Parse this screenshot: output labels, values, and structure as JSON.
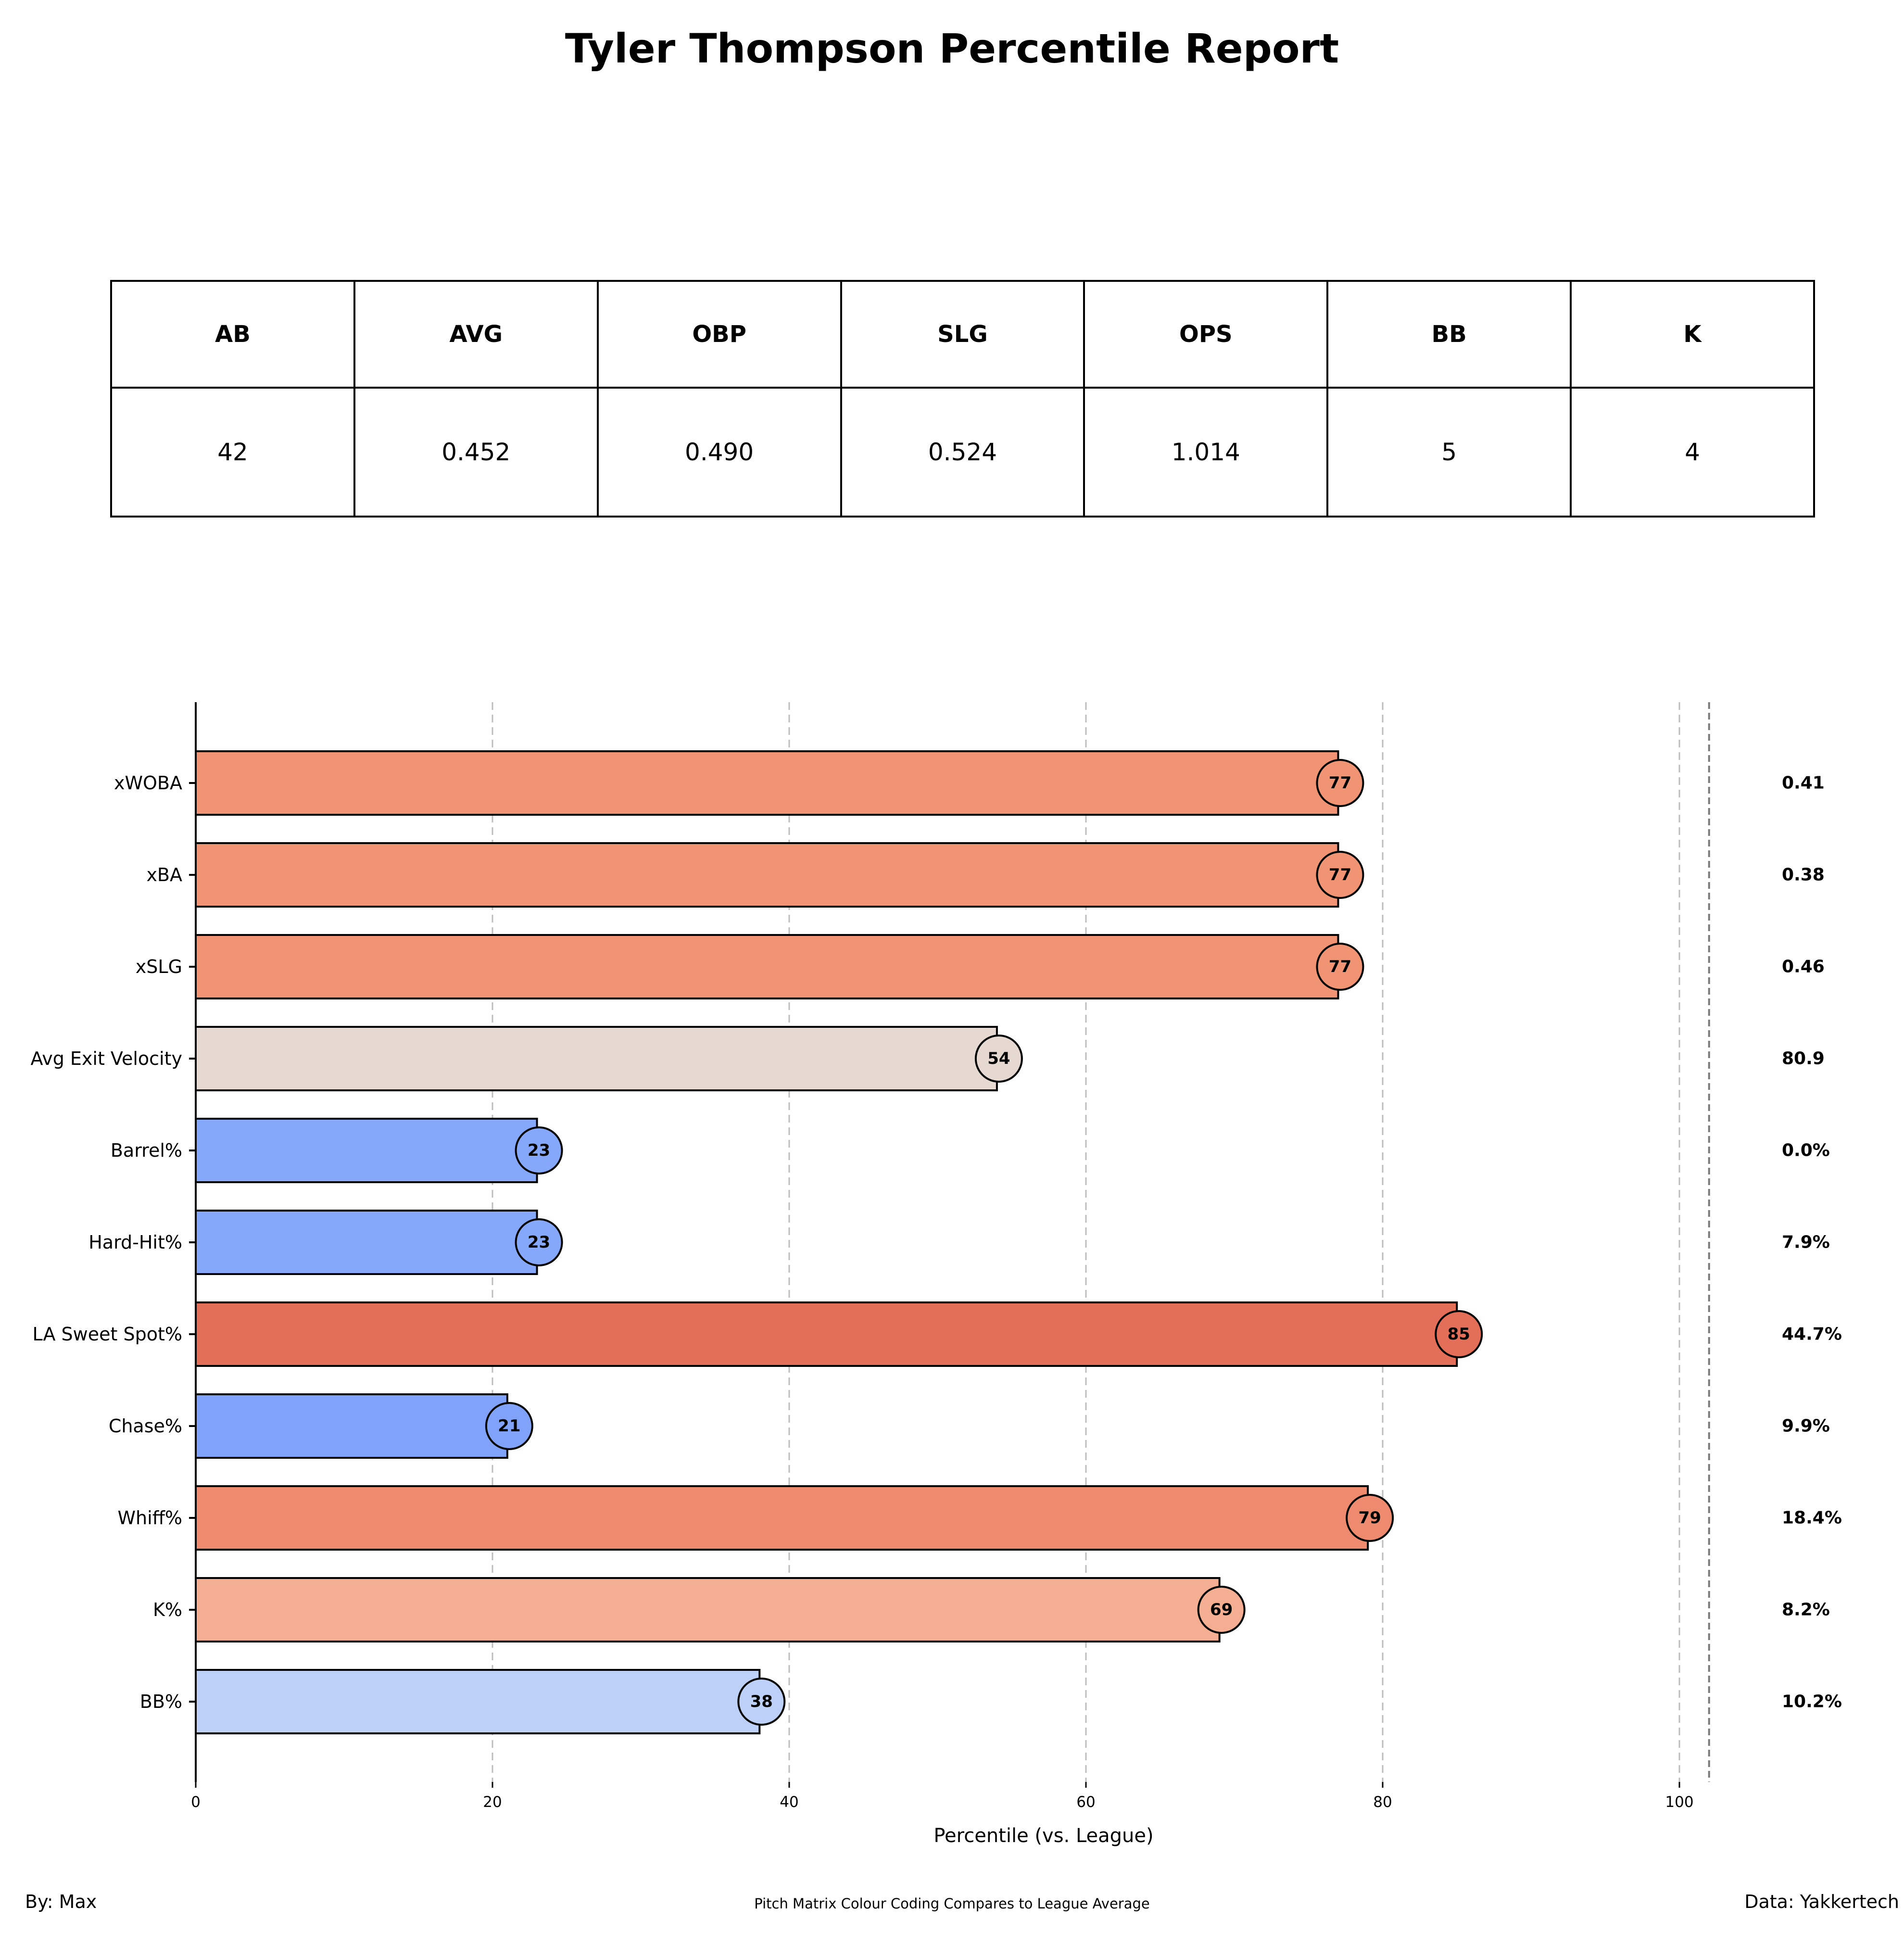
{
  "title": "Tyler Thompson Percentile Report",
  "stats_table": {
    "headers": [
      "AB",
      "AVG",
      "OBP",
      "SLG",
      "OPS",
      "BB",
      "K"
    ],
    "values": [
      "42",
      "0.452",
      "0.490",
      "0.524",
      "1.014",
      "5",
      "4"
    ]
  },
  "chart_data": {
    "type": "bar",
    "orientation": "horizontal",
    "categories": [
      "xWOBA",
      "xBA",
      "xSLG",
      "Avg Exit Velocity",
      "Barrel%",
      "Hard-Hit%",
      "LA Sweet Spot%",
      "Chase%",
      "Whiff%",
      "K%",
      "BB%"
    ],
    "values": [
      77,
      77,
      77,
      54,
      23,
      23,
      85,
      21,
      79,
      69,
      38
    ],
    "value_labels": [
      "77",
      "77",
      "77",
      "54",
      "23",
      "23",
      "85",
      "21",
      "79",
      "69",
      "38"
    ],
    "raw_values": [
      "0.41",
      "0.38",
      "0.46",
      "80.9",
      "0.0%",
      "7.9%",
      "44.7%",
      "9.9%",
      "18.4%",
      "8.2%",
      "10.2%"
    ],
    "bar_colors": [
      "#f09474",
      "#f09474",
      "#f09474",
      "#e6d9d1",
      "#86a8fa",
      "#86a8fa",
      "#e36f58",
      "#80a3f9",
      "#ee8a6d",
      "#f4ae91",
      "#bdd0f7"
    ],
    "xlabel": "Percentile (vs. League)",
    "xlim": [
      0,
      110
    ],
    "xticks": [
      0,
      20,
      40,
      60,
      80,
      100
    ],
    "grid": "vertical dashed",
    "reference_line": 102
  },
  "footer": {
    "left": "By: Max",
    "center": "Pitch Matrix Colour Coding Compares to League Average",
    "right": "Data: Yakkertech"
  }
}
